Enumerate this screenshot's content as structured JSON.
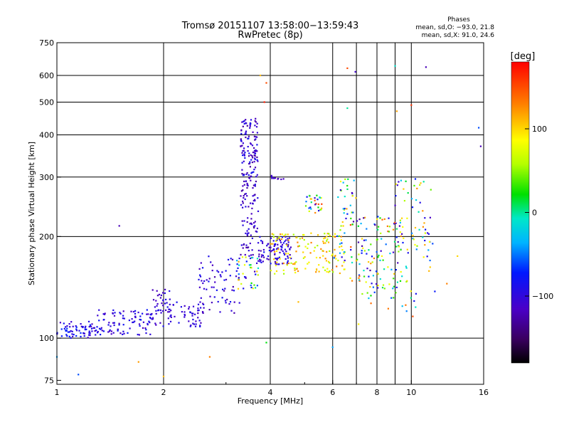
{
  "chart_data": {
    "type": "scatter",
    "title": "Tromsø 20151107 13:58:00−13:59:43",
    "subtitle": "RwPretec (8p)",
    "xlabel": "Frequency [MHz]",
    "ylabel": "Stationary phase Virtual Height [km]",
    "x_scale": "log",
    "y_scale": "log",
    "xlim": [
      1,
      16
    ],
    "ylim": [
      73,
      750
    ],
    "x_ticks": [
      1,
      2,
      4,
      6,
      8,
      10,
      16
    ],
    "x_tick_labels": [
      "1",
      "2",
      "4",
      "6",
      "8",
      "10",
      "16"
    ],
    "x_gridlines": [
      2,
      4,
      6,
      7,
      8,
      9,
      10
    ],
    "y_ticks": [
      75,
      100,
      200,
      300,
      400,
      500,
      600,
      750
    ],
    "y_tick_labels": [
      "75",
      "100",
      "200",
      "300",
      "400",
      "500",
      "600",
      "750"
    ],
    "y_gridlines": [
      100,
      200,
      300,
      400,
      500,
      600
    ],
    "grid": true,
    "phase_legend": {
      "title": "Phases",
      "line1": "mean, sd,O:  −93.0, 21.8",
      "line2": "mean, sd,X:   91.0, 24.6"
    },
    "colorbar": {
      "unit": "[deg]",
      "range": [
        -180,
        180
      ],
      "tick_values": [
        100,
        0,
        -100
      ],
      "tick_labels": [
        "100",
        "0",
        "−100"
      ]
    },
    "clusters": [
      {
        "x": [
          1.0,
          1.3
        ],
        "y": [
          100,
          112
        ],
        "n": 70,
        "phase": [
          -120,
          -65
        ]
      },
      {
        "x": [
          1.3,
          1.85
        ],
        "y": [
          102,
          122
        ],
        "n": 90,
        "phase": [
          -120,
          -75
        ]
      },
      {
        "x": [
          1.85,
          2.6
        ],
        "y": [
          108,
          128
        ],
        "n": 70,
        "phase": [
          -120,
          -85
        ]
      },
      {
        "x": [
          1.85,
          2.1
        ],
        "y": [
          118,
          142
        ],
        "n": 25,
        "phase": [
          -120,
          -90
        ]
      },
      {
        "x": [
          2.5,
          3.3
        ],
        "y": [
          118,
          175
        ],
        "n": 70,
        "phase": [
          -125,
          -80
        ]
      },
      {
        "x": [
          3.3,
          3.7
        ],
        "y": [
          300,
          450
        ],
        "n": 110,
        "phase": [
          -130,
          -80
        ]
      },
      {
        "x": [
          3.3,
          3.7
        ],
        "y": [
          175,
          300
        ],
        "n": 90,
        "phase": [
          -130,
          -90
        ]
      },
      {
        "x": [
          3.2,
          3.7
        ],
        "y": [
          140,
          175
        ],
        "n": 40,
        "phase": [
          -120,
          120
        ]
      },
      {
        "x": [
          3.7,
          4.6
        ],
        "y": [
          165,
          200
        ],
        "n": 100,
        "phase": [
          -125,
          -80
        ]
      },
      {
        "x": [
          4.0,
          4.4
        ],
        "y": [
          295,
          305
        ],
        "n": 10,
        "phase": [
          -120,
          -100
        ]
      },
      {
        "x": [
          4.0,
          6.5
        ],
        "y": [
          155,
          205
        ],
        "n": 130,
        "phase": [
          50,
          130
        ]
      },
      {
        "x": [
          5.0,
          5.6
        ],
        "y": [
          235,
          265
        ],
        "n": 30,
        "phase": [
          -120,
          160
        ]
      },
      {
        "x": [
          6.0,
          9.5
        ],
        "y": [
          140,
          230
        ],
        "n": 130,
        "phase": [
          -130,
          150
        ]
      },
      {
        "x": [
          6.2,
          7.0
        ],
        "y": [
          230,
          300
        ],
        "n": 25,
        "phase": [
          -120,
          120
        ]
      },
      {
        "x": [
          9.0,
          11.5
        ],
        "y": [
          170,
          300
        ],
        "n": 60,
        "phase": [
          -120,
          130
        ]
      },
      {
        "x": [
          7.0,
          12.0
        ],
        "y": [
          120,
          170
        ],
        "n": 40,
        "phase": [
          -100,
          150
        ]
      }
    ],
    "outliers": [
      {
        "x": 3.85,
        "y": 500,
        "phase": 170
      },
      {
        "x": 3.75,
        "y": 600,
        "phase": 110
      },
      {
        "x": 3.9,
        "y": 570,
        "phase": 150
      },
      {
        "x": 6.6,
        "y": 630,
        "phase": 150
      },
      {
        "x": 6.95,
        "y": 615,
        "phase": -110
      },
      {
        "x": 9.0,
        "y": 640,
        "phase": -10
      },
      {
        "x": 11.0,
        "y": 635,
        "phase": -120
      },
      {
        "x": 6.6,
        "y": 480,
        "phase": 0
      },
      {
        "x": 9.1,
        "y": 470,
        "phase": 120
      },
      {
        "x": 10.0,
        "y": 490,
        "phase": 160
      },
      {
        "x": 15.5,
        "y": 420,
        "phase": -60
      },
      {
        "x": 15.7,
        "y": 370,
        "phase": -120
      },
      {
        "x": 1.5,
        "y": 215,
        "phase": -120
      },
      {
        "x": 1.15,
        "y": 78,
        "phase": -60
      },
      {
        "x": 1.0,
        "y": 88,
        "phase": -40
      },
      {
        "x": 1.7,
        "y": 85,
        "phase": 120
      },
      {
        "x": 2.0,
        "y": 77,
        "phase": 110
      },
      {
        "x": 2.7,
        "y": 88,
        "phase": 130
      },
      {
        "x": 3.9,
        "y": 97,
        "phase": 20
      },
      {
        "x": 6.0,
        "y": 94,
        "phase": -40
      },
      {
        "x": 7.1,
        "y": 110,
        "phase": 90
      },
      {
        "x": 10.1,
        "y": 116,
        "phase": 150
      },
      {
        "x": 13.5,
        "y": 175,
        "phase": 100
      },
      {
        "x": 12.6,
        "y": 145,
        "phase": 130
      },
      {
        "x": 4.8,
        "y": 128,
        "phase": 110
      }
    ]
  }
}
